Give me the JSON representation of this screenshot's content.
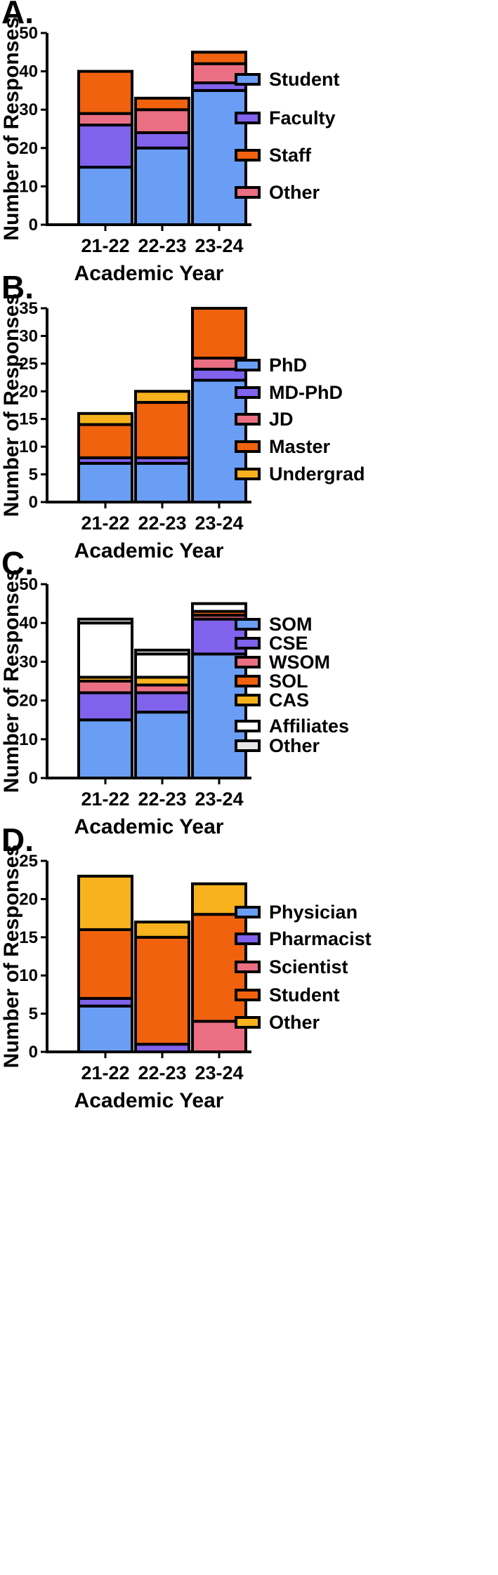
{
  "chart_data": [
    {
      "panel": "A.",
      "type": "bar",
      "stacked": true,
      "categories": [
        "21-22",
        "22-23",
        "23-24"
      ],
      "series": [
        {
          "name": "Student",
          "color": "#6a9ef5",
          "values": [
            15,
            20,
            35
          ]
        },
        {
          "name": "Faculty",
          "color": "#8062ec",
          "values": [
            11,
            4,
            2
          ]
        },
        {
          "name": "Staff",
          "color": "#f0620d",
          "values": [
            0,
            0,
            0
          ]
        },
        {
          "name": "Other",
          "color": "#ea6f82",
          "values": [
            3,
            6,
            5
          ]
        },
        {
          "name": "Staff",
          "color": "#f0620d",
          "values": [
            11,
            3,
            3
          ],
          "legend": false
        }
      ],
      "legend_order": [
        "Student",
        "Faculty",
        "Staff",
        "Other"
      ],
      "ylim": [
        0,
        50
      ],
      "yticks": [
        0,
        10,
        20,
        30,
        40,
        50
      ],
      "ylabel": "Number of Responses",
      "xlabel": "Academic Year"
    },
    {
      "panel": "B.",
      "type": "bar",
      "stacked": true,
      "categories": [
        "21-22",
        "22-23",
        "23-24"
      ],
      "series": [
        {
          "name": "PhD",
          "color": "#6a9ef5",
          "values": [
            7,
            7,
            22
          ]
        },
        {
          "name": "MD-PhD",
          "color": "#8062ec",
          "values": [
            1,
            1,
            2
          ]
        },
        {
          "name": "JD",
          "color": "#ea6f82",
          "values": [
            0,
            0,
            2
          ]
        },
        {
          "name": "Master",
          "color": "#f0620d",
          "values": [
            6,
            10,
            9
          ]
        },
        {
          "name": "Undergrad",
          "color": "#f7b21d",
          "values": [
            2,
            2,
            0
          ]
        }
      ],
      "legend_order": [
        "PhD",
        "MD-PhD",
        "JD",
        "Master",
        "Undergrad"
      ],
      "ylim": [
        0,
        35
      ],
      "yticks": [
        0,
        5,
        10,
        15,
        20,
        25,
        30,
        35
      ],
      "ylabel": "Number of Responses",
      "xlabel": "Academic Year"
    },
    {
      "panel": "C.",
      "type": "bar",
      "stacked": true,
      "categories": [
        "21-22",
        "22-23",
        "23-24"
      ],
      "series": [
        {
          "name": "SOM",
          "color": "#6a9ef5",
          "values": [
            15,
            17,
            32
          ]
        },
        {
          "name": "CSE",
          "color": "#8062ec",
          "values": [
            7,
            5,
            9
          ]
        },
        {
          "name": "WSOM",
          "color": "#ea6f82",
          "values": [
            3,
            2,
            1
          ]
        },
        {
          "name": "SOL",
          "color": "#f0620d",
          "values": [
            0,
            0,
            1
          ]
        },
        {
          "name": "CAS",
          "color": "#f7b21d",
          "values": [
            1,
            2,
            0
          ]
        },
        {
          "name": "Affiliates",
          "color": "#ffffff",
          "values": [
            14,
            6,
            2
          ]
        },
        {
          "name": "Other",
          "color": "#e6e6e6",
          "values": [
            1,
            1,
            0
          ]
        }
      ],
      "legend_order": [
        "SOM",
        "CSE",
        "WSOM",
        "SOL",
        "CAS",
        "Affiliates",
        "Other"
      ],
      "ylim": [
        0,
        50
      ],
      "yticks": [
        0,
        10,
        20,
        30,
        40,
        50
      ],
      "ylabel": "Number of Responses",
      "xlabel": "Academic Year"
    },
    {
      "panel": "D.",
      "type": "bar",
      "stacked": true,
      "categories": [
        "21-22",
        "22-23",
        "23-24"
      ],
      "series": [
        {
          "name": "Physician",
          "color": "#6a9ef5",
          "values": [
            6,
            0,
            0
          ]
        },
        {
          "name": "Pharmacist",
          "color": "#8062ec",
          "values": [
            1,
            1,
            0
          ]
        },
        {
          "name": "Scientist",
          "color": "#ea6f82",
          "values": [
            0,
            0,
            4
          ]
        },
        {
          "name": "Student",
          "color": "#f0620d",
          "values": [
            9,
            14,
            14
          ]
        },
        {
          "name": "Other",
          "color": "#f7b21d",
          "values": [
            7,
            2,
            4
          ]
        }
      ],
      "legend_order": [
        "Physician",
        "Pharmacist",
        "Scientist",
        "Student",
        "Other"
      ],
      "ylim": [
        0,
        25
      ],
      "yticks": [
        0,
        5,
        10,
        15,
        20,
        25
      ],
      "ylabel": "Number of Responses",
      "xlabel": "Academic Year"
    }
  ]
}
